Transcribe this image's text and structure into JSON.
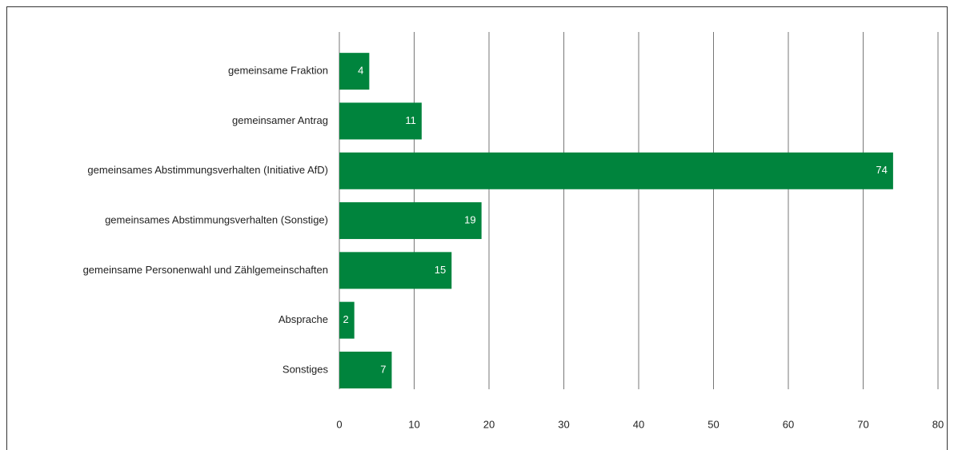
{
  "chart_data": {
    "type": "bar",
    "orientation": "horizontal",
    "categories": [
      "gemeinsame Fraktion",
      "gemeinsamer Antrag",
      "gemeinsames Abstimmungsverhalten (Initiative AfD)",
      "gemeinsames Abstimmungsverhalten (Sonstige)",
      "gemeinsame Personenwahl und Zählgemeinschaften",
      "Absprache",
      "Sonstiges"
    ],
    "values": [
      4,
      11,
      74,
      19,
      15,
      2,
      7
    ],
    "color": "#00843d",
    "xlim": [
      0,
      80
    ],
    "xticks": [
      0,
      10,
      20,
      30,
      40,
      50,
      60,
      70,
      80
    ],
    "grid": true
  }
}
